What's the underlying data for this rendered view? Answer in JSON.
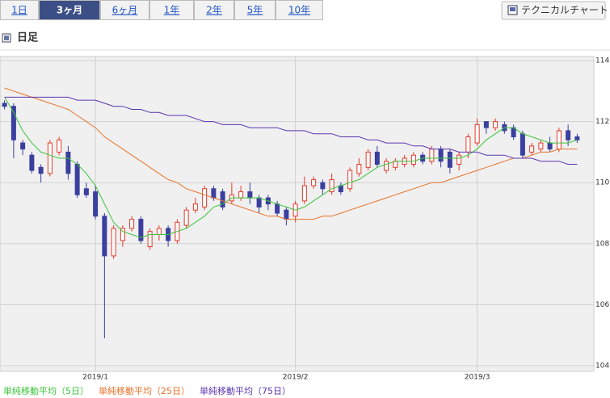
{
  "tabs": [
    "1日",
    "3ヶ月",
    "6ヶ月",
    "1年",
    "2年",
    "5年",
    "10年"
  ],
  "selected_tab": 1,
  "button": "テクニカルチャート",
  "section_title": "日足",
  "chart_data": {
    "type": "candlestick",
    "categories": [
      null,
      null,
      null,
      null,
      null,
      null,
      null,
      null,
      null,
      null,
      "2019/1",
      null,
      null,
      null,
      null,
      null,
      null,
      null,
      null,
      null,
      null,
      null,
      null,
      null,
      null,
      null,
      null,
      null,
      null,
      null,
      null,
      null,
      "2019/2",
      null,
      null,
      null,
      null,
      null,
      null,
      null,
      null,
      null,
      null,
      null,
      null,
      null,
      null,
      null,
      null,
      null,
      null,
      null,
      "2019/3",
      null,
      null,
      null,
      null,
      null,
      null,
      null,
      null,
      null,
      null,
      null
    ],
    "open": [
      112.6,
      112.5,
      111.3,
      110.9,
      110.5,
      110.3,
      111.0,
      111.0,
      110.6,
      109.8,
      109.7,
      108.9,
      107.6,
      108.1,
      108.5,
      108.8,
      107.9,
      108.3,
      108.5,
      108.1,
      108.6,
      109.1,
      109.2,
      109.8,
      109.7,
      109.4,
      109.5,
      109.7,
      109.5,
      109.5,
      109.3,
      109.1,
      108.9,
      109.4,
      109.9,
      110.0,
      109.7,
      109.9,
      109.8,
      110.3,
      110.5,
      111.0,
      110.4,
      110.5,
      110.6,
      110.6,
      110.9,
      110.7,
      111.1,
      111.0,
      110.6,
      111.0,
      111.3,
      112.0,
      111.8,
      111.9,
      111.8,
      111.6,
      111.0,
      111.1,
      111.3,
      111.1,
      111.7,
      111.5
    ],
    "high": [
      112.7,
      112.6,
      111.4,
      111.0,
      110.6,
      111.4,
      111.5,
      111.2,
      110.7,
      110.0,
      109.9,
      109.0,
      108.6,
      108.6,
      108.9,
      108.9,
      108.5,
      108.6,
      108.6,
      108.8,
      109.2,
      109.5,
      109.9,
      109.9,
      109.8,
      110.0,
      109.9,
      110.0,
      109.6,
      109.6,
      109.4,
      109.2,
      109.4,
      110.2,
      110.2,
      110.1,
      110.3,
      110.0,
      110.5,
      110.8,
      111.1,
      111.2,
      110.8,
      110.8,
      110.9,
      111.0,
      111.0,
      111.2,
      111.2,
      111.1,
      111.0,
      111.6,
      112.1,
      112.0,
      112.1,
      112.0,
      111.9,
      111.7,
      111.3,
      111.4,
      111.5,
      111.8,
      111.9,
      111.6
    ],
    "low": [
      112.4,
      110.8,
      110.9,
      110.3,
      110.0,
      110.2,
      110.9,
      110.1,
      109.5,
      109.5,
      108.8,
      104.9,
      107.5,
      107.9,
      108.4,
      108.0,
      107.8,
      108.1,
      107.9,
      108.0,
      108.5,
      109.0,
      109.1,
      109.4,
      109.1,
      109.3,
      109.4,
      109.3,
      109.0,
      109.1,
      108.9,
      108.6,
      108.7,
      109.3,
      109.8,
      109.6,
      109.6,
      109.6,
      109.7,
      110.2,
      110.4,
      110.5,
      110.3,
      110.4,
      110.5,
      110.5,
      110.6,
      110.6,
      110.5,
      110.3,
      110.4,
      110.8,
      111.2,
      111.6,
      111.7,
      111.6,
      111.4,
      110.8,
      110.9,
      111.0,
      111.0,
      111.0,
      111.2,
      111.3
    ],
    "close": [
      112.5,
      111.4,
      111.1,
      110.4,
      110.3,
      111.3,
      111.4,
      110.3,
      109.6,
      109.6,
      108.9,
      107.6,
      108.5,
      108.5,
      108.8,
      108.1,
      108.4,
      108.5,
      108.1,
      108.7,
      109.1,
      109.3,
      109.8,
      109.5,
      109.2,
      109.6,
      109.7,
      109.5,
      109.2,
      109.3,
      109.0,
      108.8,
      109.3,
      109.9,
      110.1,
      109.8,
      110.1,
      109.7,
      110.4,
      110.6,
      111.0,
      110.6,
      110.7,
      110.7,
      110.8,
      110.9,
      110.7,
      111.1,
      110.7,
      110.5,
      110.9,
      111.5,
      111.9,
      111.8,
      112.0,
      111.7,
      111.5,
      110.9,
      111.2,
      111.3,
      111.1,
      111.7,
      111.4,
      111.4
    ],
    "up_color": "#e03a2a",
    "down_color": "#3b3f9e",
    "series": [
      {
        "name": "単純移動平均（5日）",
        "color": "#3cc43c",
        "values": [
          112.8,
          112.3,
          111.7,
          111.3,
          111.0,
          110.9,
          110.8,
          110.8,
          110.6,
          110.3,
          109.9,
          109.3,
          108.7,
          108.4,
          108.3,
          108.2,
          108.3,
          108.3,
          108.3,
          108.4,
          108.5,
          108.7,
          108.9,
          109.2,
          109.3,
          109.5,
          109.5,
          109.5,
          109.5,
          109.4,
          109.3,
          109.2,
          109.1,
          109.2,
          109.4,
          109.6,
          109.8,
          109.9,
          110.0,
          110.1,
          110.3,
          110.5,
          110.6,
          110.7,
          110.7,
          110.7,
          110.8,
          110.8,
          110.8,
          110.8,
          110.8,
          110.9,
          111.1,
          111.4,
          111.6,
          111.8,
          111.8,
          111.6,
          111.5,
          111.4,
          111.3,
          111.3,
          111.3,
          111.4
        ]
      },
      {
        "name": "単純移動平均（25日）",
        "color": "#e8732a",
        "values": [
          113.1,
          113.0,
          112.9,
          112.8,
          112.7,
          112.6,
          112.5,
          112.4,
          112.2,
          112.0,
          111.8,
          111.5,
          111.3,
          111.1,
          110.9,
          110.7,
          110.5,
          110.3,
          110.1,
          110.0,
          109.8,
          109.7,
          109.6,
          109.5,
          109.4,
          109.3,
          109.2,
          109.1,
          109.0,
          108.9,
          108.9,
          108.8,
          108.8,
          108.8,
          108.8,
          108.9,
          108.9,
          109.0,
          109.1,
          109.2,
          109.3,
          109.4,
          109.5,
          109.6,
          109.7,
          109.8,
          109.9,
          110.0,
          110.0,
          110.1,
          110.2,
          110.3,
          110.4,
          110.5,
          110.6,
          110.7,
          110.8,
          110.8,
          110.9,
          111.0,
          111.0,
          111.1,
          111.1,
          111.1
        ]
      },
      {
        "name": "単純移動平均（75日）",
        "color": "#5a34b0",
        "values": [
          112.8,
          112.8,
          112.8,
          112.8,
          112.8,
          112.8,
          112.8,
          112.8,
          112.7,
          112.7,
          112.7,
          112.6,
          112.5,
          112.5,
          112.4,
          112.4,
          112.3,
          112.3,
          112.2,
          112.2,
          112.2,
          112.1,
          112.0,
          112.0,
          111.9,
          111.9,
          111.9,
          111.8,
          111.8,
          111.8,
          111.8,
          111.7,
          111.7,
          111.7,
          111.6,
          111.6,
          111.6,
          111.5,
          111.5,
          111.5,
          111.4,
          111.4,
          111.3,
          111.3,
          111.3,
          111.2,
          111.2,
          111.1,
          111.1,
          111.1,
          111.0,
          111.0,
          111.0,
          110.9,
          110.9,
          110.9,
          110.8,
          110.8,
          110.8,
          110.7,
          110.7,
          110.7,
          110.6,
          110.6
        ]
      }
    ],
    "ylim": [
      104,
      114
    ],
    "yticks": [
      104,
      106,
      108,
      110,
      112,
      114
    ],
    "grid": true
  }
}
